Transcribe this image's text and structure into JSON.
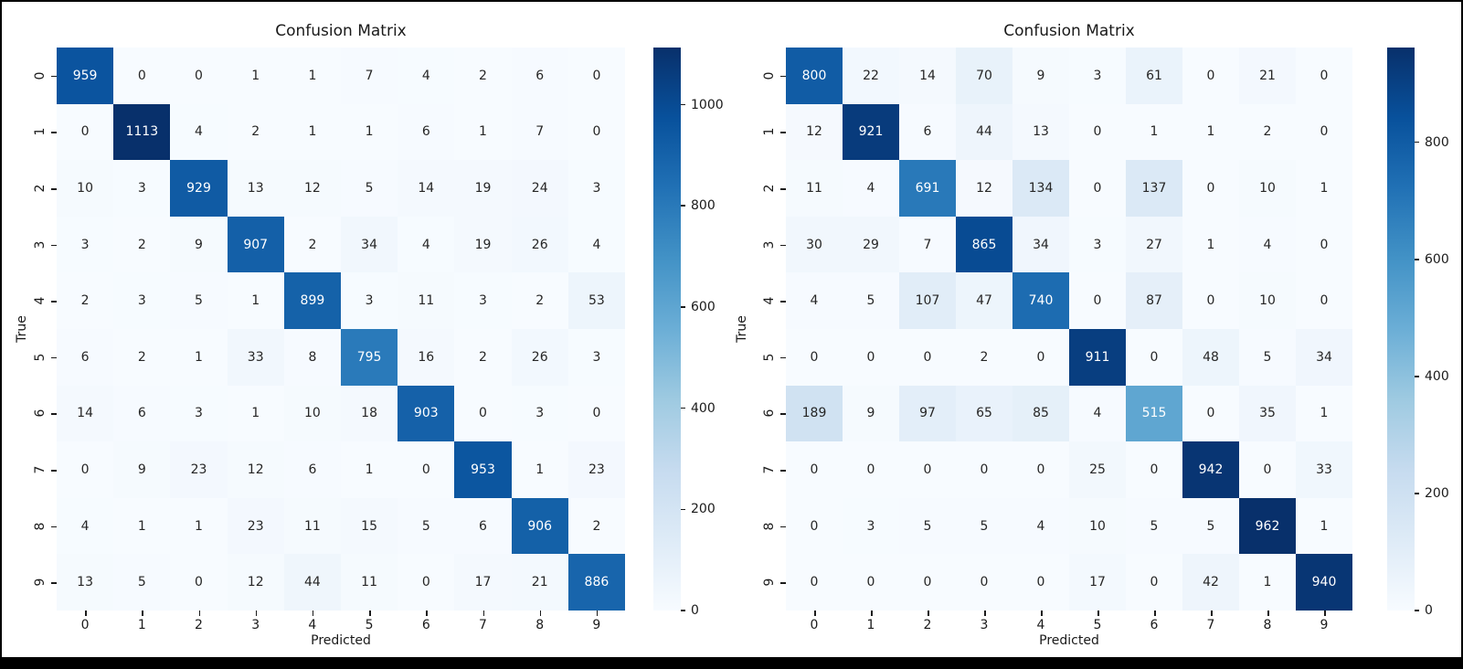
{
  "figure": {
    "background_color": "#ffffff",
    "border_color": "#000000",
    "annotation_dark_text_color": "#262626",
    "annotation_light_text_color": "#ffffff"
  },
  "colormap": {
    "name": "Blues",
    "stops": [
      "#f7fbff",
      "#deebf7",
      "#c6dbef",
      "#9ecae1",
      "#6baed6",
      "#4292c6",
      "#2171b5",
      "#08519c",
      "#08306b"
    ]
  },
  "chart_data": [
    {
      "type": "heatmap",
      "title": "Confusion Matrix",
      "xlabel": "Predicted",
      "ylabel": "True",
      "x_tick_labels": [
        "0",
        "1",
        "2",
        "3",
        "4",
        "5",
        "6",
        "7",
        "8",
        "9"
      ],
      "y_tick_labels": [
        "0",
        "1",
        "2",
        "3",
        "4",
        "5",
        "6",
        "7",
        "8",
        "9"
      ],
      "vmin": 0,
      "vmax": 1113,
      "colorbar_ticks": [
        0,
        200,
        400,
        600,
        800,
        1000
      ],
      "legend_position": "right-colorbar",
      "grid": false,
      "values": [
        [
          959,
          0,
          0,
          1,
          1,
          7,
          4,
          2,
          6,
          0
        ],
        [
          0,
          1113,
          4,
          2,
          1,
          1,
          6,
          1,
          7,
          0
        ],
        [
          10,
          3,
          929,
          13,
          12,
          5,
          14,
          19,
          24,
          3
        ],
        [
          3,
          2,
          9,
          907,
          2,
          34,
          4,
          19,
          26,
          4
        ],
        [
          2,
          3,
          5,
          1,
          899,
          3,
          11,
          3,
          2,
          53
        ],
        [
          6,
          2,
          1,
          33,
          8,
          795,
          16,
          2,
          26,
          3
        ],
        [
          14,
          6,
          3,
          1,
          10,
          18,
          903,
          0,
          3,
          0
        ],
        [
          0,
          9,
          23,
          12,
          6,
          1,
          0,
          953,
          1,
          23
        ],
        [
          4,
          1,
          1,
          23,
          11,
          15,
          5,
          6,
          906,
          2
        ],
        [
          13,
          5,
          0,
          12,
          44,
          11,
          0,
          17,
          21,
          886
        ]
      ]
    },
    {
      "type": "heatmap",
      "title": "Confusion Matrix",
      "xlabel": "Predicted",
      "ylabel": "True",
      "x_tick_labels": [
        "0",
        "1",
        "2",
        "3",
        "4",
        "5",
        "6",
        "7",
        "8",
        "9"
      ],
      "y_tick_labels": [
        "0",
        "1",
        "2",
        "3",
        "4",
        "5",
        "6",
        "7",
        "8",
        "9"
      ],
      "vmin": 0,
      "vmax": 962,
      "colorbar_ticks": [
        0,
        200,
        400,
        600,
        800
      ],
      "legend_position": "right-colorbar",
      "grid": false,
      "values": [
        [
          800,
          22,
          14,
          70,
          9,
          3,
          61,
          0,
          21,
          0
        ],
        [
          12,
          921,
          6,
          44,
          13,
          0,
          1,
          1,
          2,
          0
        ],
        [
          11,
          4,
          691,
          12,
          134,
          0,
          137,
          0,
          10,
          1
        ],
        [
          30,
          29,
          7,
          865,
          34,
          3,
          27,
          1,
          4,
          0
        ],
        [
          4,
          5,
          107,
          47,
          740,
          0,
          87,
          0,
          10,
          0
        ],
        [
          0,
          0,
          0,
          2,
          0,
          911,
          0,
          48,
          5,
          34
        ],
        [
          189,
          9,
          97,
          65,
          85,
          4,
          515,
          0,
          35,
          1
        ],
        [
          0,
          0,
          0,
          0,
          0,
          25,
          0,
          942,
          0,
          33
        ],
        [
          0,
          3,
          5,
          5,
          4,
          10,
          5,
          5,
          962,
          1
        ],
        [
          0,
          0,
          0,
          0,
          0,
          17,
          0,
          42,
          1,
          940
        ]
      ]
    }
  ]
}
